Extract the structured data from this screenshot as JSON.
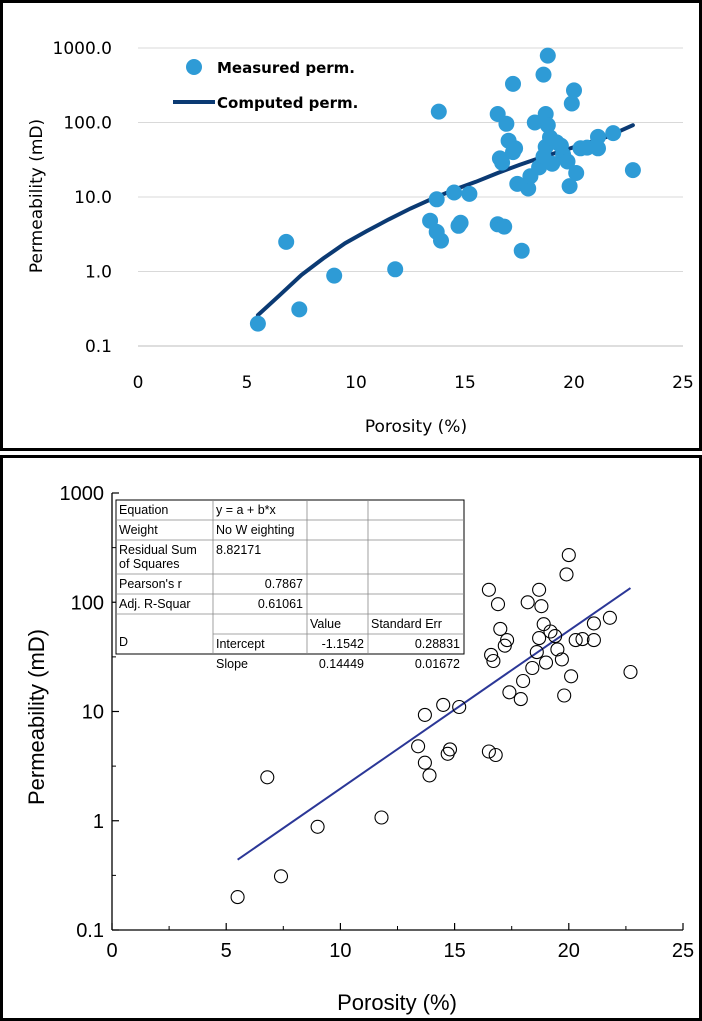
{
  "chart_data": [
    {
      "type": "scatter",
      "title": "",
      "xlabel": "Porosity (%)",
      "ylabel": "Permeability (mD)",
      "xlim": [
        0,
        25
      ],
      "ylim": [
        0.1,
        1000
      ],
      "y_scale": "log",
      "x_ticks": [
        "0",
        "5",
        "10",
        "15",
        "20",
        "25"
      ],
      "y_ticks": [
        "0.1",
        "1.0",
        "10.0",
        "100.0",
        "1000.0"
      ],
      "grid": "horizontal",
      "legend_position": "top-left",
      "colors": {
        "points": "#2e9bd6",
        "curve": "#0b3a73"
      },
      "series": [
        {
          "name": "Measured perm.",
          "mode": "markers",
          "points": [
            [
              5.5,
              0.2
            ],
            [
              6.8,
              2.5
            ],
            [
              7.4,
              0.31
            ],
            [
              9.0,
              0.88
            ],
            [
              11.8,
              1.07
            ],
            [
              13.4,
              4.8
            ],
            [
              13.7,
              9.3
            ],
            [
              13.7,
              3.4
            ],
            [
              13.8,
              140
            ],
            [
              13.9,
              2.6
            ],
            [
              14.5,
              11.5
            ],
            [
              14.7,
              4.1
            ],
            [
              14.8,
              4.5
            ],
            [
              15.2,
              11
            ],
            [
              16.5,
              130
            ],
            [
              16.5,
              4.3
            ],
            [
              16.6,
              33
            ],
            [
              16.7,
              29
            ],
            [
              16.8,
              4.0
            ],
            [
              16.9,
              96
            ],
            [
              17.0,
              57
            ],
            [
              17.2,
              40
            ],
            [
              17.3,
              45
            ],
            [
              17.2,
              330
            ],
            [
              17.4,
              15
            ],
            [
              17.6,
              1.9
            ],
            [
              17.9,
              13
            ],
            [
              18.0,
              19
            ],
            [
              18.2,
              100
            ],
            [
              18.4,
              25
            ],
            [
              18.6,
              440
            ],
            [
              18.6,
              35
            ],
            [
              18.7,
              47
            ],
            [
              18.7,
              130
            ],
            [
              18.8,
              92
            ],
            [
              18.8,
              790
            ],
            [
              18.9,
              63
            ],
            [
              19.0,
              28
            ],
            [
              19.2,
              54
            ],
            [
              19.4,
              49
            ],
            [
              19.5,
              37
            ],
            [
              19.7,
              30
            ],
            [
              19.8,
              14
            ],
            [
              19.9,
              180
            ],
            [
              20.0,
              270
            ],
            [
              20.1,
              21
            ],
            [
              20.3,
              45
            ],
            [
              20.6,
              46
            ],
            [
              21.1,
              64
            ],
            [
              21.1,
              45
            ],
            [
              21.8,
              72
            ],
            [
              22.7,
              23
            ]
          ]
        },
        {
          "name": "Computed perm.",
          "mode": "line",
          "points": [
            [
              5.5,
              0.26
            ],
            [
              6.5,
              0.48
            ],
            [
              7.5,
              0.9
            ],
            [
              8.5,
              1.5
            ],
            [
              9.5,
              2.4
            ],
            [
              10.5,
              3.5
            ],
            [
              11.5,
              5.0
            ],
            [
              12.5,
              7.0
            ],
            [
              13.5,
              9.5
            ],
            [
              14.5,
              12.5
            ],
            [
              15.5,
              16
            ],
            [
              16.5,
              21
            ],
            [
              17.5,
              27
            ],
            [
              18.5,
              34
            ],
            [
              19.5,
              42
            ],
            [
              20.5,
              52
            ],
            [
              21.5,
              64
            ],
            [
              22.7,
              92
            ]
          ]
        }
      ]
    },
    {
      "type": "scatter",
      "title": "",
      "xlabel": "Porosity (%)",
      "ylabel": "Permeability (mD)",
      "xlim": [
        0,
        25
      ],
      "ylim": [
        0.1,
        1000
      ],
      "y_scale": "log",
      "x_ticks": [
        "0",
        "5",
        "10",
        "15",
        "20",
        "25"
      ],
      "y_ticks": [
        "0.1",
        "1",
        "10",
        "100",
        "1000"
      ],
      "grid": "off",
      "colors": {
        "points": "#000000",
        "line": "#2b3797"
      },
      "series": [
        {
          "mode": "markers",
          "marker": "open-circle",
          "points": [
            [
              5.5,
              0.2
            ],
            [
              6.8,
              2.5
            ],
            [
              7.4,
              0.31
            ],
            [
              9.0,
              0.88
            ],
            [
              11.8,
              1.07
            ],
            [
              13.4,
              4.8
            ],
            [
              13.7,
              9.3
            ],
            [
              13.7,
              3.4
            ],
            [
              13.9,
              2.6
            ],
            [
              14.5,
              11.5
            ],
            [
              14.7,
              4.1
            ],
            [
              14.8,
              4.5
            ],
            [
              15.2,
              11
            ],
            [
              16.5,
              130
            ],
            [
              16.5,
              4.3
            ],
            [
              16.6,
              33
            ],
            [
              16.7,
              29
            ],
            [
              16.8,
              4.0
            ],
            [
              16.9,
              96
            ],
            [
              17.0,
              57
            ],
            [
              17.2,
              40
            ],
            [
              17.3,
              45
            ],
            [
              17.4,
              15
            ],
            [
              17.9,
              13
            ],
            [
              18.0,
              19
            ],
            [
              18.2,
              100
            ],
            [
              18.4,
              25
            ],
            [
              18.6,
              35
            ],
            [
              18.7,
              47
            ],
            [
              18.7,
              130
            ],
            [
              18.8,
              92
            ],
            [
              18.9,
              63
            ],
            [
              19.0,
              28
            ],
            [
              19.2,
              54
            ],
            [
              19.4,
              49
            ],
            [
              19.5,
              37
            ],
            [
              19.7,
              30
            ],
            [
              19.8,
              14
            ],
            [
              19.9,
              180
            ],
            [
              20.0,
              270
            ],
            [
              20.1,
              21
            ],
            [
              20.3,
              45
            ],
            [
              20.6,
              46
            ],
            [
              21.1,
              64
            ],
            [
              21.1,
              45
            ],
            [
              21.8,
              72
            ],
            [
              22.7,
              23
            ]
          ]
        },
        {
          "mode": "line",
          "points": [
            [
              5.5,
              0.44
            ],
            [
              22.7,
              135
            ]
          ]
        }
      ],
      "fit_table": {
        "rows": [
          [
            "Equation",
            "y = a + b*x",
            "",
            ""
          ],
          [
            "Weight",
            "No W eighting",
            "",
            ""
          ],
          [
            "Residual Sum\nof Squares",
            "8.82171",
            "",
            ""
          ],
          [
            "Pearson's r",
            "0.7867",
            "",
            ""
          ],
          [
            "Adj. R-Squar",
            "0.61061",
            "",
            ""
          ],
          [
            "",
            "",
            "Value",
            "Standard Err"
          ],
          [
            "D",
            "Intercept",
            "-1.1542",
            "0.28831"
          ],
          [
            "",
            "Slope",
            "0.14449",
            "0.01672"
          ]
        ]
      }
    }
  ]
}
